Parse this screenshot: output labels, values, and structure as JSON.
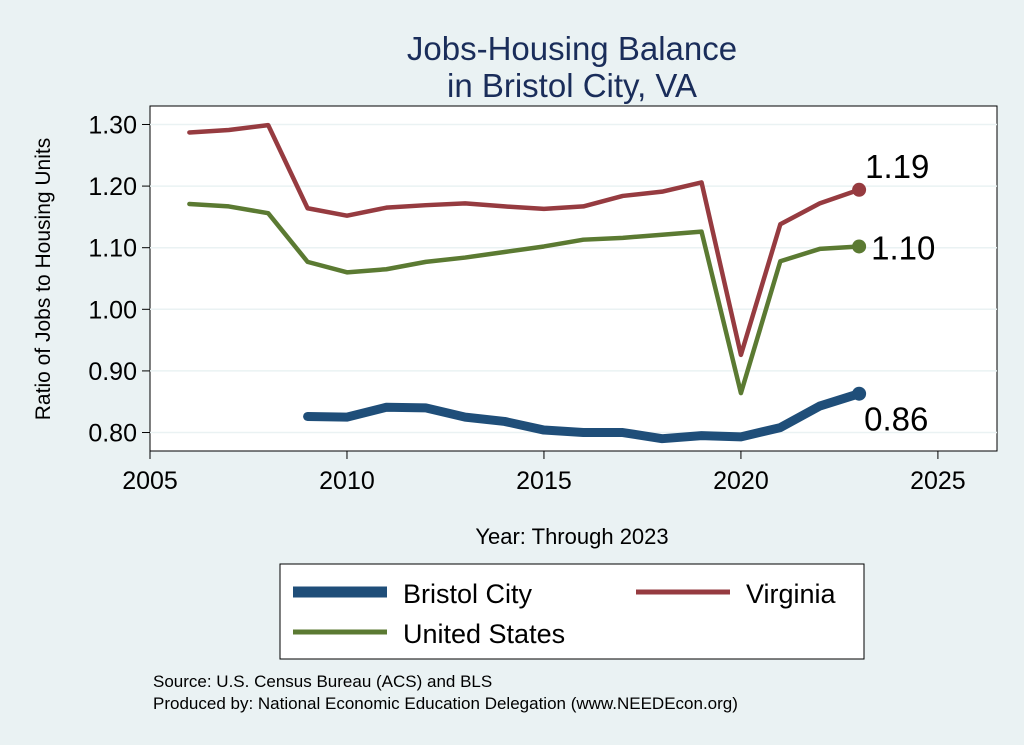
{
  "chart_data": {
    "type": "line",
    "title": [
      "Jobs-Housing Balance",
      "in Bristol City, VA"
    ],
    "xlabel": "Year: Through 2023",
    "ylabel": "Ratio of Jobs to Housing Units",
    "xlim": [
      2005,
      2026.5
    ],
    "ylim": [
      0.77,
      1.33
    ],
    "xticks": [
      2005,
      2010,
      2015,
      2020,
      2025
    ],
    "yticks": [
      0.8,
      0.9,
      1.0,
      1.1,
      1.2,
      1.3
    ],
    "ytick_labels": [
      "0.80",
      "0.90",
      "1.00",
      "1.10",
      "1.20",
      "1.30"
    ],
    "grid": "horizontal",
    "series": [
      {
        "name": "Bristol City",
        "color": "#1f4e79",
        "style": "thick",
        "x": [
          2009,
          2010,
          2011,
          2012,
          2013,
          2014,
          2015,
          2016,
          2017,
          2018,
          2019,
          2020,
          2021,
          2022,
          2023
        ],
        "values": [
          0.826,
          0.825,
          0.841,
          0.84,
          0.825,
          0.818,
          0.804,
          0.8,
          0.8,
          0.79,
          0.795,
          0.793,
          0.808,
          0.843,
          0.863
        ],
        "end_label": "0.86"
      },
      {
        "name": "Virginia",
        "color": "#963b40",
        "style": "normal",
        "x": [
          2006,
          2007,
          2008,
          2009,
          2010,
          2011,
          2012,
          2013,
          2014,
          2015,
          2016,
          2017,
          2018,
          2019,
          2020,
          2021,
          2022,
          2023
        ],
        "values": [
          1.287,
          1.291,
          1.299,
          1.164,
          1.152,
          1.165,
          1.169,
          1.172,
          1.167,
          1.163,
          1.167,
          1.184,
          1.191,
          1.206,
          0.926,
          1.138,
          1.172,
          1.194
        ],
        "end_label": "1.19"
      },
      {
        "name": "United States",
        "color": "#5b7a32",
        "style": "normal",
        "x": [
          2006,
          2007,
          2008,
          2009,
          2010,
          2011,
          2012,
          2013,
          2014,
          2015,
          2016,
          2017,
          2018,
          2019,
          2020,
          2021,
          2022,
          2023
        ],
        "values": [
          1.171,
          1.167,
          1.156,
          1.077,
          1.06,
          1.065,
          1.077,
          1.084,
          1.093,
          1.102,
          1.113,
          1.116,
          1.121,
          1.126,
          0.864,
          1.078,
          1.098,
          1.102
        ],
        "end_label": "1.10"
      }
    ],
    "legend": {
      "placement": "bottom",
      "entries": [
        "Bristol City",
        "Virginia",
        "United States"
      ]
    }
  },
  "source": {
    "line1": "Source: U.S. Census Bureau (ACS) and BLS",
    "line2": "Produced by: National Economic Education Delegation (www.NEEDEcon.org)"
  }
}
